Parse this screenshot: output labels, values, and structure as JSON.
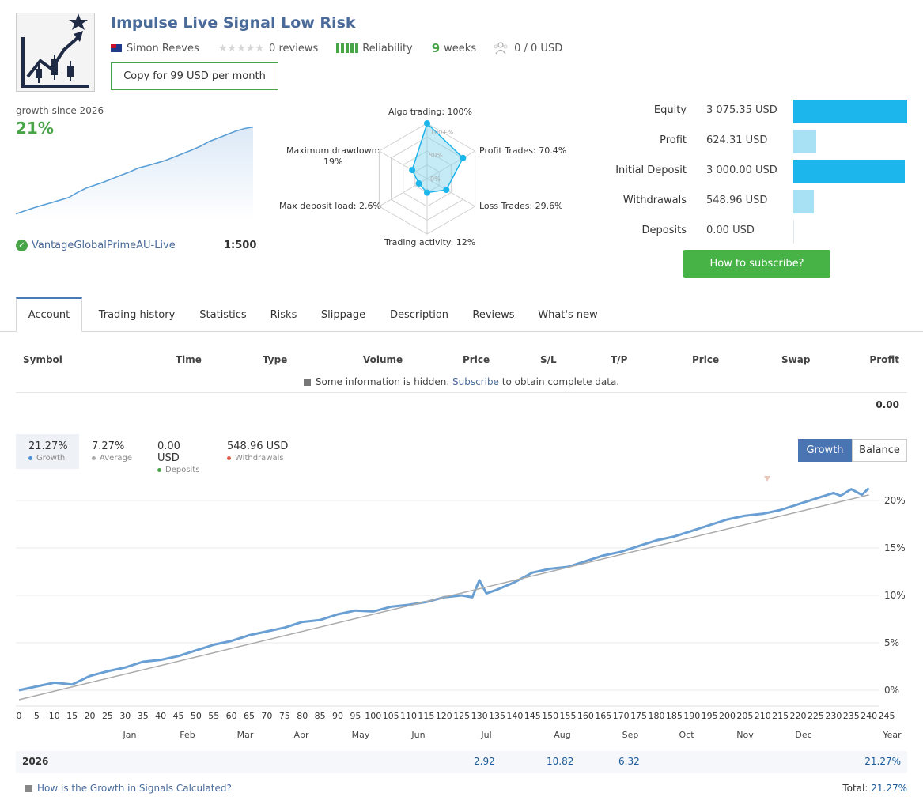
{
  "header": {
    "title": "Impulse Live Signal Low Risk",
    "author": "Simon Reeves",
    "reviews": "0 reviews",
    "reliability": "Reliability",
    "weeks_num": "9",
    "weeks_label": "weeks",
    "subscribers": "0 / 0 USD",
    "copy_button": "Copy for 99 USD per month",
    "stars_filled": 0
  },
  "mini_growth": {
    "label": "growth since 2026",
    "value": "21%",
    "broker": "VantageGlobalPrimeAU-Live",
    "leverage": "1:500",
    "curve": [
      0.8,
      1.5,
      2.2,
      2.8,
      3.4,
      4.0,
      4.6,
      5.8,
      6.8,
      7.5,
      8.2,
      9.0,
      9.8,
      10.6,
      11.5,
      12.0,
      12.6,
      13.2,
      14.0,
      14.8,
      15.6,
      16.5,
      17.6,
      18.4,
      19.2,
      20.0,
      20.6,
      21.0
    ]
  },
  "radar": {
    "algo": "Algo trading: 100%",
    "profit_trades": "Profit Trades: 70.4%",
    "loss_trades": "Loss Trades: 29.6%",
    "activity": "Trading activity: 12%",
    "deposit_load": "Max deposit load: 2.6%",
    "drawdown_1": "Maximum drawdown:",
    "drawdown_2": "19%",
    "tick_100": "100+%",
    "tick_50": "50%",
    "tick_0": "0%",
    "values": [
      100,
      70.4,
      29.6,
      12,
      2.6,
      19
    ]
  },
  "stats": [
    {
      "label": "Equity",
      "value": "3 075.35 USD",
      "fraction": 1.0,
      "color": "#1cb5ec"
    },
    {
      "label": "Profit",
      "value": "624.31 USD",
      "fraction": 0.2,
      "color": "#a8e0f4"
    },
    {
      "label": "Initial Deposit",
      "value": "3 000.00 USD",
      "fraction": 0.976,
      "color": "#1cb5ec"
    },
    {
      "label": "Withdrawals",
      "value": "548.96 USD",
      "fraction": 0.18,
      "color": "#a8e0f4"
    },
    {
      "label": "Deposits",
      "value": "0.00 USD",
      "fraction": 0.0,
      "color": "#a8e0f4"
    }
  ],
  "subscribe_button": "How to subscribe?",
  "tabs": [
    "Account",
    "Trading history",
    "Statistics",
    "Risks",
    "Slippage",
    "Description",
    "Reviews",
    "What's new"
  ],
  "table": {
    "headers": [
      "Symbol",
      "Time",
      "Type",
      "Volume",
      "Price",
      "S/L",
      "T/P",
      "Price",
      "Swap",
      "Profit"
    ],
    "hidden_before": "Some information is hidden.",
    "hidden_link": "Subscribe",
    "hidden_after": "to obtain complete data.",
    "total_profit": "0.00"
  },
  "summary": [
    {
      "value": "21.27%",
      "label": "Growth",
      "color": "#4a90d9"
    },
    {
      "value": "7.27%",
      "label": "Average",
      "color": "#aaaaaa"
    },
    {
      "value": "0.00 USD",
      "label": "Deposits",
      "color": "#47a447"
    },
    {
      "value": "548.96 USD",
      "label": "Withdrawals",
      "color": "#e05a4a"
    }
  ],
  "chart_toggle": {
    "growth": "Growth",
    "balance": "Balance"
  },
  "chart_data": {
    "type": "line",
    "x_ticks": [
      "0",
      "5",
      "10",
      "15",
      "20",
      "25",
      "30",
      "35",
      "40",
      "45",
      "50",
      "55",
      "60",
      "65",
      "70",
      "75",
      "80",
      "85",
      "90",
      "95",
      "100",
      "105",
      "110",
      "115",
      "120",
      "125",
      "130",
      "135",
      "140",
      "145",
      "150",
      "155",
      "160",
      "165",
      "170",
      "175",
      "180",
      "185",
      "190",
      "195",
      "200",
      "205",
      "210",
      "215",
      "220",
      "225",
      "230",
      "235",
      "240",
      "245"
    ],
    "months": [
      "Jan",
      "Feb",
      "Mar",
      "Apr",
      "May",
      "Jun",
      "Jul",
      "Aug",
      "Sep",
      "Oct",
      "Nov",
      "Dec",
      "Year"
    ],
    "y_ticks": [
      "0%",
      "5%",
      "10%",
      "15%",
      "20%"
    ],
    "ylim": [
      -1,
      22
    ],
    "xlim": [
      0,
      245
    ],
    "series": [
      {
        "name": "Growth",
        "color": "#6a9fd4",
        "x": [
          0,
          10,
          15,
          20,
          25,
          30,
          35,
          40,
          45,
          50,
          55,
          60,
          65,
          70,
          75,
          80,
          85,
          90,
          95,
          100,
          105,
          110,
          115,
          120,
          125,
          128,
          130,
          132,
          135,
          140,
          145,
          150,
          155,
          160,
          165,
          170,
          175,
          180,
          185,
          190,
          195,
          200,
          205,
          210,
          215,
          220,
          225,
          230,
          232,
          235,
          238,
          240
        ],
        "values": [
          0.0,
          0.8,
          0.6,
          1.5,
          2.0,
          2.4,
          3.0,
          3.2,
          3.6,
          4.2,
          4.8,
          5.2,
          5.8,
          6.2,
          6.6,
          7.2,
          7.4,
          8.0,
          8.4,
          8.3,
          8.8,
          9.0,
          9.3,
          9.8,
          10.0,
          9.8,
          11.6,
          10.2,
          10.6,
          11.4,
          12.4,
          12.8,
          13.0,
          13.6,
          14.2,
          14.6,
          15.2,
          15.8,
          16.2,
          16.8,
          17.4,
          18.0,
          18.4,
          18.6,
          19.0,
          19.6,
          20.2,
          20.8,
          20.5,
          21.2,
          20.6,
          21.3
        ]
      },
      {
        "name": "Average",
        "color": "#aaaaaa",
        "x": [
          0,
          240
        ],
        "values": [
          -1.0,
          20.6
        ]
      }
    ]
  },
  "year_row": {
    "year": "2026",
    "jul": "2.92",
    "aug": "10.82",
    "sep": "6.32",
    "total": "21.27%"
  },
  "footer": {
    "question": "How is the Growth in Signals Calculated?",
    "total_label": "Total:",
    "total_value": "21.27%"
  }
}
